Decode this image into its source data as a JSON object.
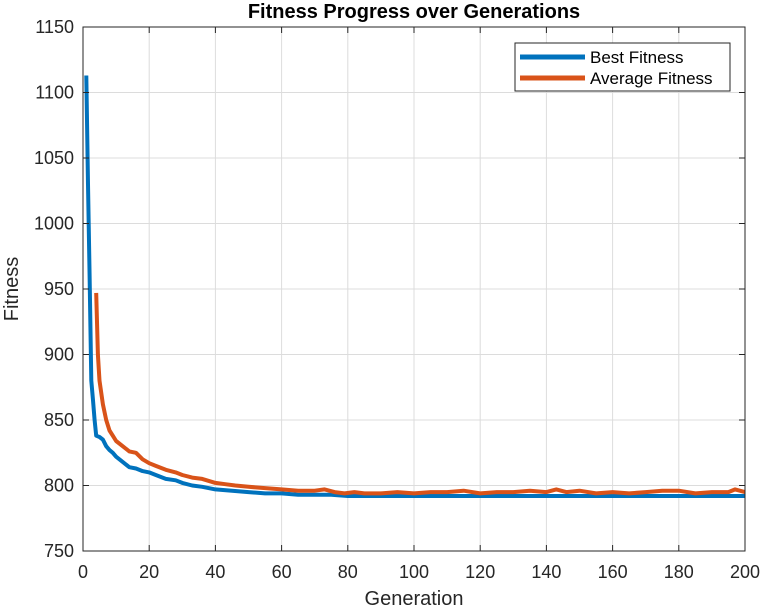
{
  "chart_data": {
    "type": "line",
    "title": "Fitness Progress over Generations",
    "xlabel": "Generation",
    "ylabel": "Fitness",
    "xlim": [
      0,
      200
    ],
    "ylim": [
      750,
      1150
    ],
    "xticks": [
      0,
      20,
      40,
      60,
      80,
      100,
      120,
      140,
      160,
      180,
      200
    ],
    "yticks": [
      750,
      800,
      850,
      900,
      950,
      1000,
      1050,
      1100,
      1150
    ],
    "grid": true,
    "legend_position": "top-right",
    "series": [
      {
        "name": "Best Fitness",
        "color": "#0072BD",
        "x": [
          1,
          1.5,
          2,
          2.5,
          3,
          3.5,
          4,
          5,
          6,
          7,
          8,
          9,
          10,
          12,
          14,
          16,
          18,
          20,
          22,
          25,
          28,
          30,
          33,
          36,
          40,
          45,
          50,
          55,
          60,
          65,
          70,
          75,
          80,
          90,
          100,
          110,
          120,
          130,
          140,
          150,
          160,
          170,
          180,
          190,
          200
        ],
        "y": [
          1113,
          1030,
          960,
          880,
          866,
          850,
          838,
          837,
          835,
          830,
          827,
          825,
          822,
          818,
          814,
          813,
          811,
          810,
          808,
          805,
          804,
          802,
          800,
          799,
          797,
          796,
          795,
          794,
          794,
          793,
          793,
          793,
          792,
          792,
          792,
          792,
          792,
          792,
          792,
          792,
          792,
          792,
          792,
          792,
          792
        ]
      },
      {
        "name": "Average Fitness",
        "color": "#D95319",
        "x": [
          4,
          4.5,
          5,
          6,
          7,
          8,
          9,
          10,
          12,
          14,
          16,
          18,
          20,
          22,
          25,
          28,
          30,
          33,
          36,
          40,
          43,
          46,
          50,
          55,
          60,
          65,
          70,
          73,
          76,
          79,
          82,
          85,
          90,
          95,
          100,
          105,
          110,
          115,
          120,
          125,
          130,
          135,
          140,
          143,
          146,
          150,
          155,
          160,
          165,
          170,
          175,
          180,
          185,
          190,
          195,
          197,
          200
        ],
        "y": [
          947,
          900,
          880,
          862,
          850,
          842,
          838,
          834,
          830,
          826,
          825,
          820,
          817,
          815,
          812,
          810,
          808,
          806,
          805,
          802,
          801,
          800,
          799,
          798,
          797,
          796,
          796,
          797,
          795,
          794,
          795,
          794,
          794,
          795,
          794,
          795,
          795,
          796,
          794,
          795,
          795,
          796,
          795,
          797,
          795,
          796,
          794,
          795,
          794,
          795,
          796,
          796,
          794,
          795,
          795,
          797,
          795
        ]
      }
    ]
  }
}
